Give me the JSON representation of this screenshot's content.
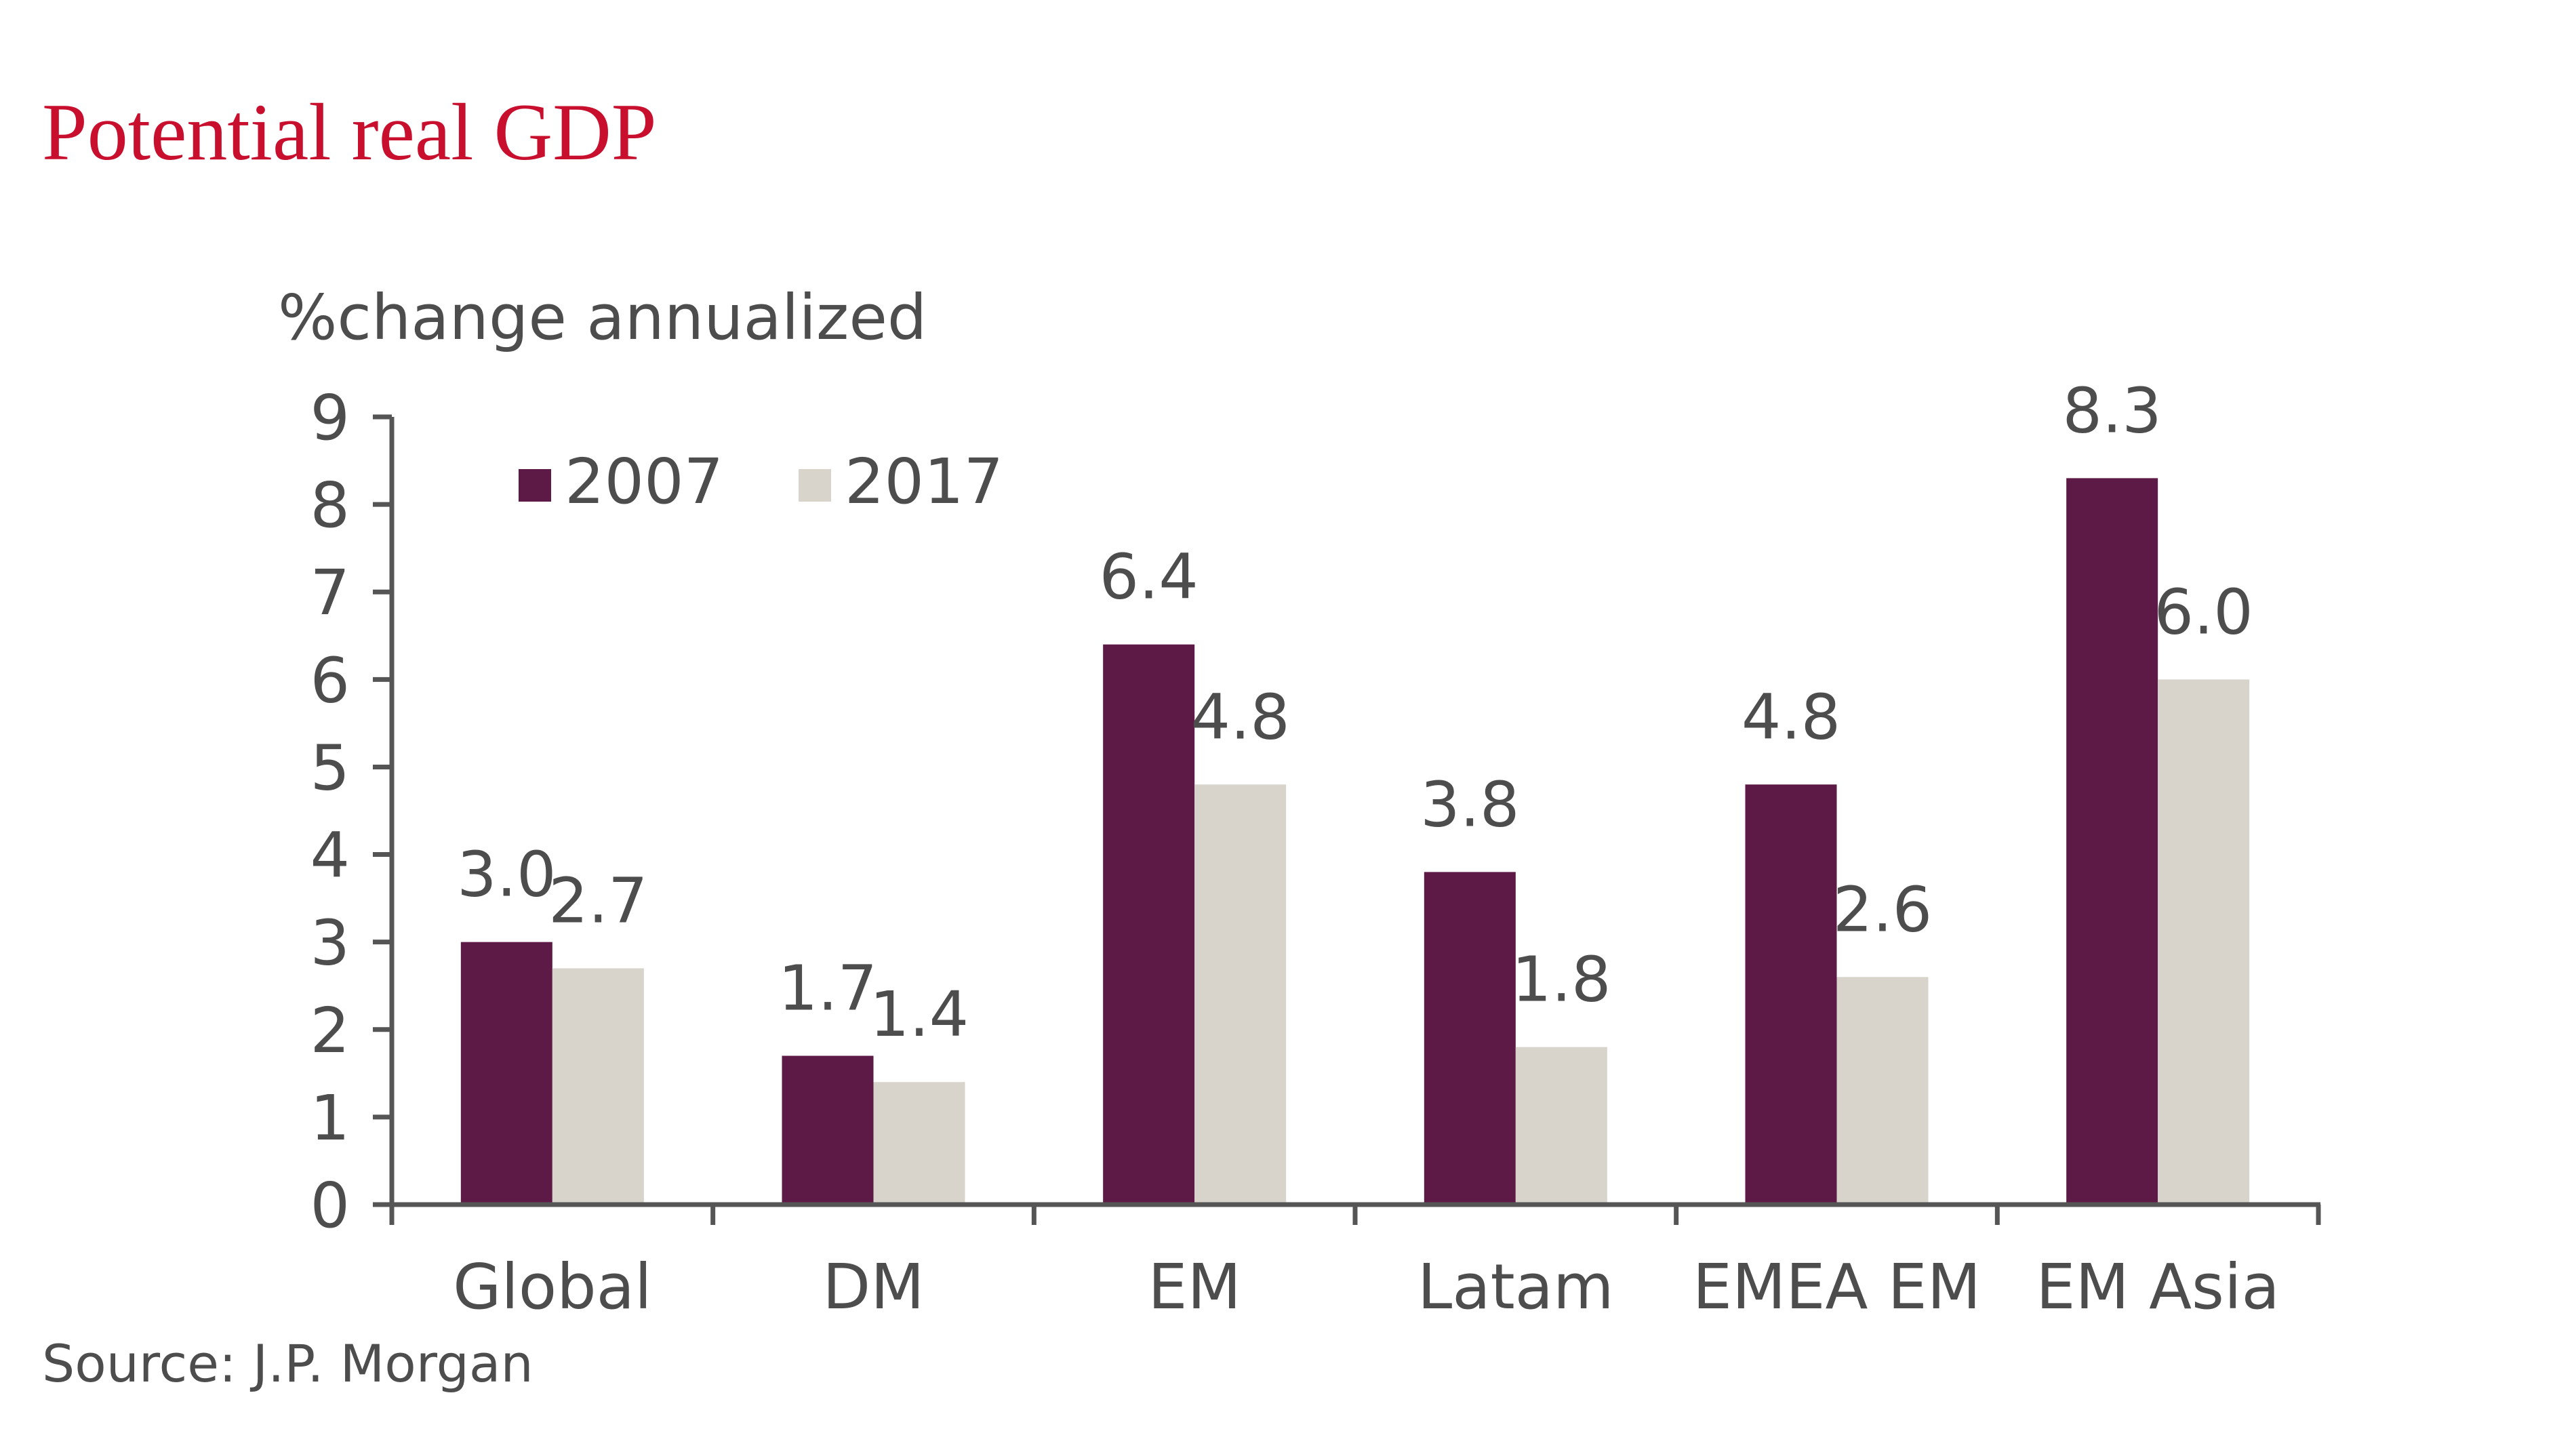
{
  "colors": {
    "title": "#c8102e",
    "series_2007": "#5e1a47",
    "series_2017": "#d8d4cc",
    "text": "#4d4d4d",
    "axis": "#555555"
  },
  "chart_data": {
    "type": "bar",
    "title": "Potential real GDP",
    "ylabel": "%change annualized",
    "xlabel": "",
    "categories": [
      "Global",
      "DM",
      "EM",
      "Latam",
      "EMEA EM",
      "EM Asia"
    ],
    "series": [
      {
        "name": "2007",
        "values": [
          3.0,
          1.7,
          6.4,
          3.8,
          4.8,
          8.3
        ],
        "labels": [
          "3.0",
          "1.7",
          "6.4",
          "3.8",
          "4.8",
          "8.3"
        ]
      },
      {
        "name": "2017",
        "values": [
          2.7,
          1.4,
          4.8,
          1.8,
          2.6,
          6.0
        ],
        "labels": [
          "2.7",
          "1.4",
          "4.8",
          "1.8",
          "2.6",
          "6.0"
        ]
      }
    ],
    "ylim": [
      0,
      9
    ],
    "yticks": [
      "0",
      "1",
      "2",
      "3",
      "4",
      "5",
      "6",
      "7",
      "8",
      "9"
    ],
    "legend_position": "top-left",
    "grid": false
  },
  "source": "Source: J.P. Morgan"
}
